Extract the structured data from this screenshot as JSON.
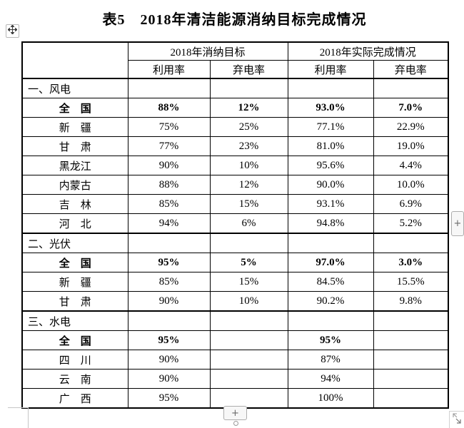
{
  "title": "表5　2018年清洁能源消纳目标完成情况",
  "table": {
    "group_headers": [
      "2018年消纳目标",
      "2018年实际完成情况"
    ],
    "sub_headers": [
      "利用率",
      "弃电率",
      "利用率",
      "弃电率"
    ],
    "rows": [
      {
        "kind": "section",
        "label": "一、风电",
        "values": [
          "",
          "",
          "",
          ""
        ]
      },
      {
        "kind": "total",
        "label": "全　国",
        "values": [
          "88%",
          "12%",
          "93.0%",
          "7.0%"
        ]
      },
      {
        "kind": "province",
        "label": "新　疆",
        "values": [
          "75%",
          "25%",
          "77.1%",
          "22.9%"
        ]
      },
      {
        "kind": "province",
        "label": "甘　肃",
        "values": [
          "77%",
          "23%",
          "81.0%",
          "19.0%"
        ]
      },
      {
        "kind": "province",
        "label": "黑龙江",
        "values": [
          "90%",
          "10%",
          "95.6%",
          "4.4%"
        ]
      },
      {
        "kind": "province",
        "label": "内蒙古",
        "values": [
          "88%",
          "12%",
          "90.0%",
          "10.0%"
        ]
      },
      {
        "kind": "province",
        "label": "吉　林",
        "values": [
          "85%",
          "15%",
          "93.1%",
          "6.9%"
        ]
      },
      {
        "kind": "province",
        "label": "河　北",
        "values": [
          "94%",
          "6%",
          "94.8%",
          "5.2%"
        ]
      },
      {
        "kind": "section",
        "label": "二、光伏",
        "values": [
          "",
          "",
          "",
          ""
        ]
      },
      {
        "kind": "total",
        "label": "全　国",
        "values": [
          "95%",
          "5%",
          "97.0%",
          "3.0%"
        ]
      },
      {
        "kind": "province",
        "label": "新　疆",
        "values": [
          "85%",
          "15%",
          "84.5%",
          "15.5%"
        ]
      },
      {
        "kind": "province",
        "label": "甘　肃",
        "values": [
          "90%",
          "10%",
          "90.2%",
          "9.8%"
        ]
      },
      {
        "kind": "section",
        "label": "三、水电",
        "values": [
          "",
          "",
          "",
          ""
        ]
      },
      {
        "kind": "total",
        "label": "全　国",
        "values": [
          "95%",
          "",
          "95%",
          ""
        ]
      },
      {
        "kind": "province",
        "label": "四　川",
        "values": [
          "90%",
          "",
          "87%",
          ""
        ]
      },
      {
        "kind": "province",
        "label": "云　南",
        "values": [
          "90%",
          "",
          "94%",
          ""
        ]
      },
      {
        "kind": "province",
        "label": "广　西",
        "values": [
          "95%",
          "",
          "100%",
          ""
        ]
      }
    ]
  },
  "controls": {
    "add_column_label": "+",
    "add_row_label": "+"
  }
}
